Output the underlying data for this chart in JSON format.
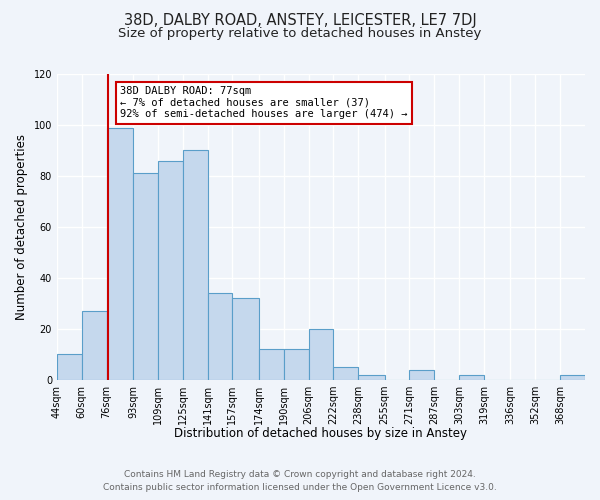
{
  "title": "38D, DALBY ROAD, ANSTEY, LEICESTER, LE7 7DJ",
  "subtitle": "Size of property relative to detached houses in Anstey",
  "xlabel": "Distribution of detached houses by size in Anstey",
  "ylabel": "Number of detached properties",
  "bin_labels": [
    "44sqm",
    "60sqm",
    "76sqm",
    "93sqm",
    "109sqm",
    "125sqm",
    "141sqm",
    "157sqm",
    "174sqm",
    "190sqm",
    "206sqm",
    "222sqm",
    "238sqm",
    "255sqm",
    "271sqm",
    "287sqm",
    "303sqm",
    "319sqm",
    "336sqm",
    "352sqm",
    "368sqm"
  ],
  "bin_edges": [
    44,
    60,
    76,
    93,
    109,
    125,
    141,
    157,
    174,
    190,
    206,
    222,
    238,
    255,
    271,
    287,
    303,
    319,
    336,
    352,
    368,
    384
  ],
  "bar_heights": [
    10,
    27,
    99,
    81,
    86,
    90,
    34,
    32,
    12,
    12,
    20,
    5,
    2,
    0,
    4,
    0,
    2,
    0,
    0,
    0,
    2
  ],
  "bar_color": "#c5d8ed",
  "bar_edge_color": "#5a9ec9",
  "property_line_x": 77,
  "property_line_color": "#cc0000",
  "annotation_title": "38D DALBY ROAD: 77sqm",
  "annotation_line1": "← 7% of detached houses are smaller (37)",
  "annotation_line2": "92% of semi-detached houses are larger (474) →",
  "annotation_box_color": "#ffffff",
  "annotation_box_edge_color": "#cc0000",
  "ylim": [
    0,
    120
  ],
  "yticks": [
    0,
    20,
    40,
    60,
    80,
    100,
    120
  ],
  "footer_line1": "Contains HM Land Registry data © Crown copyright and database right 2024.",
  "footer_line2": "Contains public sector information licensed under the Open Government Licence v3.0.",
  "bg_color": "#f0f4fa",
  "grid_color": "#ffffff",
  "title_fontsize": 10.5,
  "subtitle_fontsize": 9.5,
  "axis_label_fontsize": 8.5,
  "tick_fontsize": 7,
  "annotation_fontsize": 7.5,
  "footer_fontsize": 6.5
}
